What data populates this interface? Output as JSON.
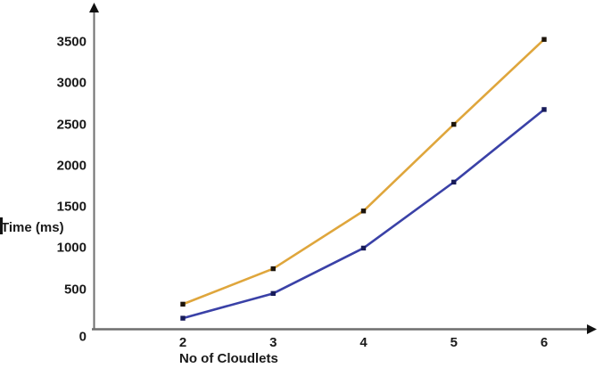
{
  "chart_data": {
    "type": "line",
    "title": "",
    "xlabel": "No of Cloudlets",
    "ylabel": "Time (ms)",
    "categories": [
      2,
      3,
      4,
      5,
      6
    ],
    "series": [
      {
        "name": "orange",
        "color": "#DFA63C",
        "marker_color": "#1C140B",
        "values": [
          320,
          750,
          1450,
          2500,
          3530
        ]
      },
      {
        "name": "blue",
        "color": "#3A41A7",
        "marker_color": "#171B59",
        "values": [
          150,
          450,
          1000,
          1800,
          2680
        ]
      }
    ],
    "ylim": [
      0,
      3500
    ],
    "y_ticks": [
      3500,
      3000,
      2500,
      2000,
      1500,
      1000,
      500,
      0
    ],
    "x_ticks": [
      "2",
      "3",
      "4",
      "5",
      "6"
    ],
    "grid": false,
    "legend": "none",
    "axis_color": "#6E6E6E",
    "arrow_color": "#111111",
    "text_color": "#1A1A1A",
    "background": "#FFFFFF"
  }
}
